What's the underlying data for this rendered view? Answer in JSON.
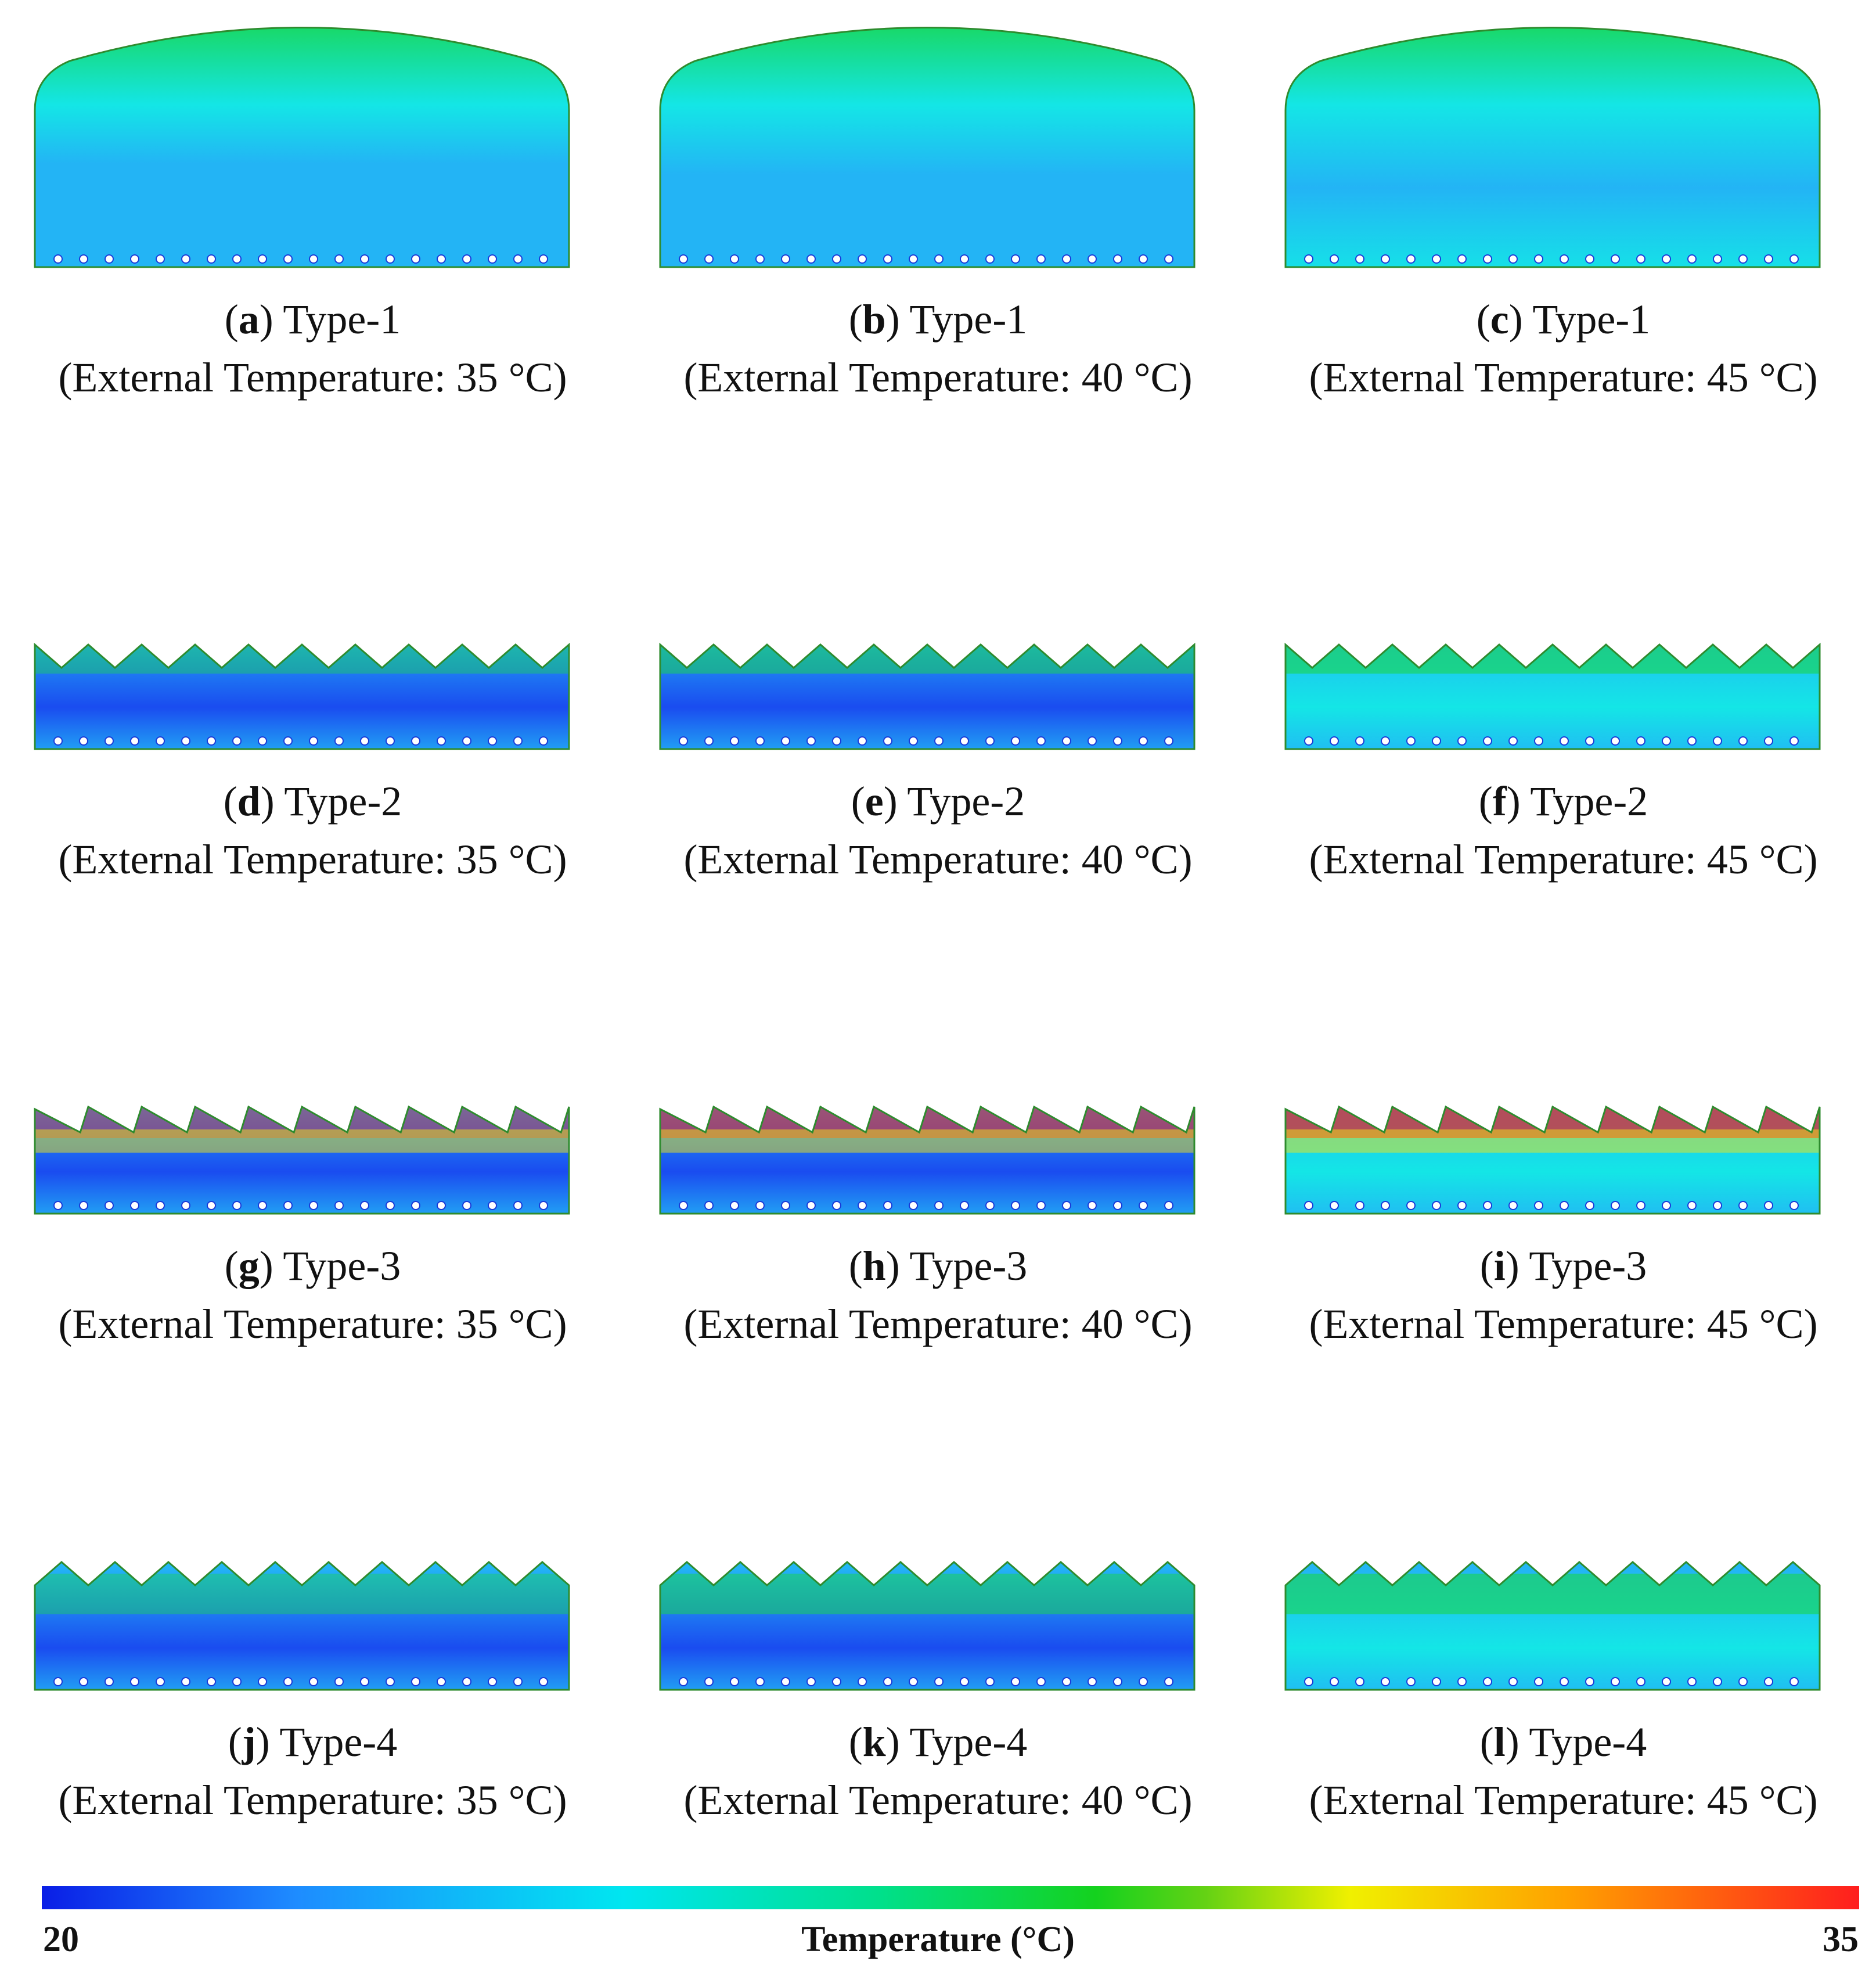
{
  "panels": [
    {
      "letter": "a",
      "type": "Type-1",
      "condition": "(External Temperature: 35 °C)",
      "shape": "dome",
      "warm": 0.1
    },
    {
      "letter": "b",
      "type": "Type-1",
      "condition": "(External Temperature: 40 °C)",
      "shape": "dome",
      "warm": 0.3
    },
    {
      "letter": "c",
      "type": "Type-1",
      "condition": "(External Temperature: 45 °C)",
      "shape": "dome",
      "warm": 0.55
    },
    {
      "letter": "d",
      "type": "Type-2",
      "condition": "(External Temperature: 35 °C)",
      "shape": "sawtooth-down",
      "warm": 0.05
    },
    {
      "letter": "e",
      "type": "Type-2",
      "condition": "(External Temperature: 40 °C)",
      "shape": "sawtooth-down",
      "warm": 0.25
    },
    {
      "letter": "f",
      "type": "Type-2",
      "condition": "(External Temperature: 45 °C)",
      "shape": "sawtooth-down",
      "warm": 0.45
    },
    {
      "letter": "g",
      "type": "Type-3",
      "condition": "(External Temperature: 35 °C)",
      "shape": "sawtooth-tilt",
      "warm": 0.15
    },
    {
      "letter": "h",
      "type": "Type-3",
      "condition": "(External Temperature: 40 °C)",
      "shape": "sawtooth-tilt",
      "warm": 0.4
    },
    {
      "letter": "i",
      "type": "Type-3",
      "condition": "(External Temperature: 45 °C)",
      "shape": "sawtooth-tilt",
      "warm": 0.6
    },
    {
      "letter": "j",
      "type": "Type-4",
      "condition": "(External Temperature: 35 °C)",
      "shape": "sawtooth-up",
      "warm": 0.05
    },
    {
      "letter": "k",
      "type": "Type-4",
      "condition": "(External Temperature: 40 °C)",
      "shape": "sawtooth-up",
      "warm": 0.25
    },
    {
      "letter": "l",
      "type": "Type-4",
      "condition": "(External Temperature: 45 °C)",
      "shape": "sawtooth-up",
      "warm": 0.45
    }
  ],
  "colorbar": {
    "min": "20",
    "max": "35",
    "title": "Temperature (°C)",
    "stops": [
      "#0a1ee6",
      "#1e8cff",
      "#00e6f0",
      "#00e08c",
      "#14d21e",
      "#64d214",
      "#f0f000",
      "#ffa000",
      "#ff1e1e"
    ]
  },
  "colors": {
    "cold": "#1a4cf0",
    "cool": "#23b4f5",
    "cyan": "#14e6e6",
    "green": "#19d650",
    "yellow": "#f0e614",
    "red": "#f01e1e",
    "outline": "#2e8b2e"
  }
}
